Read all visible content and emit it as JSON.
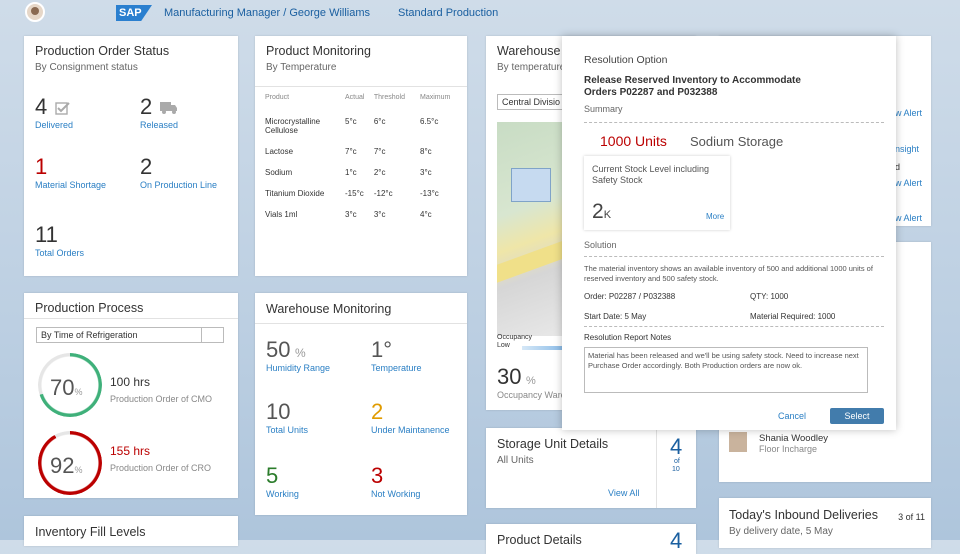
{
  "shell": {
    "logo": "SAP",
    "title": "Manufacturing Manager / George Williams",
    "subtitle": "Standard Production"
  },
  "production_order_status": {
    "title": "Production Order Status",
    "subtitle": "By Consignment status",
    "delivered": {
      "value": "4",
      "label": "Delivered"
    },
    "released": {
      "value": "2",
      "label": "Released"
    },
    "material_shortage": {
      "value": "1",
      "label": "Material Shortage"
    },
    "on_production_line": {
      "value": "2",
      "label": "On Production Line"
    },
    "total_orders": {
      "value": "11",
      "label": "Total Orders"
    }
  },
  "product_monitoring": {
    "title": "Product Monitoring",
    "subtitle": "By Temperature",
    "headers": [
      "Product",
      "Actual",
      "Threshold",
      "Maximum"
    ],
    "rows": [
      {
        "product": "Microcrystalline Cellulose",
        "actual": "5°c",
        "threshold": "6°c",
        "maximum": "6.5°c",
        "status": "red"
      },
      {
        "product": "Lactose",
        "actual": "7°c",
        "threshold": "7°c",
        "maximum": "8°c",
        "status": "orange"
      },
      {
        "product": "Sodium",
        "actual": "1°c",
        "threshold": "2°c",
        "maximum": "3°c",
        "status": "green"
      },
      {
        "product": "Titanium Dioxide",
        "actual": "-15°c",
        "threshold": "-12°c",
        "maximum": "-13°c",
        "status": "red"
      },
      {
        "product": "Vials 1ml",
        "actual": "3°c",
        "threshold": "3°c",
        "maximum": "4°c",
        "status": "red"
      }
    ]
  },
  "warehouse_left": {
    "title": "Warehouse",
    "subtitle": "By temperature",
    "select_value": "Central Divisio",
    "occupancy_label": "Occupancy",
    "occupancy_level": "Low",
    "occupancy_value": "30",
    "occupancy_unit": "%",
    "occupancy_caption": "Occupancy Ware"
  },
  "right_column": {
    "alert1": "w Alert",
    "insight": "nsight",
    "d": "d",
    "alert2": "w Alert",
    "alert3": "w Alert"
  },
  "production_process": {
    "title": "Production Process",
    "select_value": "By Time of Refrigeration",
    "gauge1": {
      "percent": 70,
      "value_label": "70",
      "unit": "%",
      "hours": "100 hrs",
      "caption": "Production Order of CMO",
      "color": "#3fb07a"
    },
    "gauge2": {
      "percent": 92,
      "value_label": "92",
      "unit": "%",
      "hours": "155 hrs",
      "caption": "Production Order of CRO",
      "color": "#bb0000"
    }
  },
  "warehouse_monitoring": {
    "title": "Warehouse Monitoring",
    "humidity": {
      "value": "50",
      "unit": "%",
      "label": "Humidity Range"
    },
    "temperature": {
      "value": "1°",
      "label": "Temperature"
    },
    "total_units": {
      "value": "10",
      "label": "Total Units"
    },
    "maintenance": {
      "value": "2",
      "label": "Under Maintanence"
    },
    "working": {
      "value": "5",
      "label": "Working"
    },
    "not_working": {
      "value": "3",
      "label": "Not Working"
    }
  },
  "storage_unit": {
    "title": "Storage Unit Details",
    "subtitle": "All Units",
    "count": "4",
    "of": "of",
    "total": "10",
    "link": "View All"
  },
  "product_details": {
    "title": "Product Details",
    "count": "4"
  },
  "inventory_fill": {
    "title": "Inventory Fill Levels"
  },
  "contact": {
    "name": "Shania Woodley",
    "role": "Floor Incharge"
  },
  "inbound": {
    "title": "Today's Inbound Deliveries",
    "counter": "3 of 11",
    "subtitle": "By delivery date, 5 May"
  },
  "modal": {
    "header": "Resolution Option",
    "heading": "Release Reserved Inventory to Accommodate Orders P02287 and P032388",
    "summary_label": "Summary",
    "units": "1000 Units",
    "storage": "Sodium Storage",
    "stock_label": "Current Stock Level including Safety Stock",
    "stock_value": "2",
    "stock_unit": "K",
    "more": "More",
    "solution_label": "Solution",
    "solution_text": "The material inventory shows an available inventory of 500 and additional 1000 units of reserved inventory and 500 safety stock.",
    "order_label": "Order: P02287 / P032388",
    "qty_label": "QTY: 1000",
    "start_label": "Start Date: 5 May",
    "material_label": "Material Required: 1000",
    "notes_label": "Resolution Report Notes",
    "notes_text": "Material has been released and we'll be using safety stock. Need to increase next Purchase Order accordingly. Both Production orders are now ok.",
    "cancel": "Cancel",
    "select": "Select"
  }
}
